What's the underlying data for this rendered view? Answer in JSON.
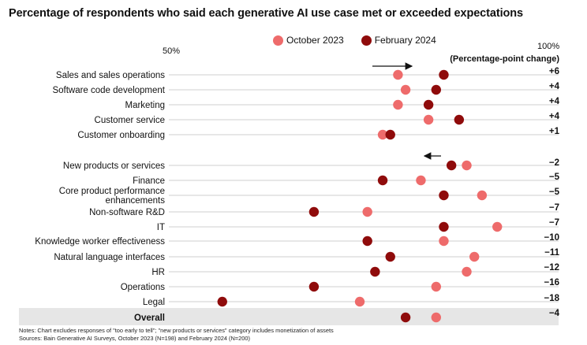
{
  "title": "Percentage of respondents who said each generative AI use case met or exceeded expectations",
  "legend": {
    "oct_label": "October 2023",
    "feb_label": "February 2024"
  },
  "axis": {
    "low_label": "50%",
    "high_label": "100%"
  },
  "change_header": "(Percentage-point change)",
  "notes": {
    "line1": "Notes: Chart excludes responses of \"too early to tell\"; \"new products or services\" category includes monetization of assets",
    "line2": "Sources: Bain Generative AI Surveys, October 2023 (N=198) and February 2024 (N=200)"
  },
  "colors": {
    "oct": "#ee6b6b",
    "feb": "#8f0b0b",
    "grid": "#bfbfbf",
    "overall_bg": "#e6e6e6"
  },
  "chart_data": {
    "type": "dot",
    "title": "Percentage of respondents who said each generative AI use case met or exceeded expectations",
    "xlim": [
      50,
      100
    ],
    "series": [
      "October 2023",
      "February 2024"
    ],
    "rows": [
      {
        "label": "Sales and sales operations",
        "oct": 80,
        "feb": 86,
        "change": "+6",
        "group": 1
      },
      {
        "label": "Software code development",
        "oct": 81,
        "feb": 85,
        "change": "+4",
        "group": 1
      },
      {
        "label": "Marketing",
        "oct": 80,
        "feb": 84,
        "change": "+4",
        "group": 1
      },
      {
        "label": "Customer service",
        "oct": 84,
        "feb": 88,
        "change": "+4",
        "group": 1
      },
      {
        "label": "Customer onboarding",
        "oct": 78,
        "feb": 79,
        "change": "+1",
        "group": 1
      },
      {
        "label": "New products or services",
        "oct": 89,
        "feb": 87,
        "change": "−2",
        "group": 2
      },
      {
        "label": "Finance",
        "oct": 83,
        "feb": 78,
        "change": "−5",
        "group": 2
      },
      {
        "label": "Core product performance enhancements",
        "label_lines": [
          "Core product performance",
          "enhancements"
        ],
        "oct": 91,
        "feb": 86,
        "change": "−5",
        "group": 2
      },
      {
        "label": "Non-software R&D",
        "oct": 76,
        "feb": 69,
        "change": "−7",
        "group": 2
      },
      {
        "label": "IT",
        "oct": 93,
        "feb": 86,
        "change": "−7",
        "group": 2
      },
      {
        "label": "Knowledge worker effectiveness",
        "oct": 86,
        "feb": 76,
        "change": "−10",
        "group": 2
      },
      {
        "label": "Natural language interfaces",
        "oct": 90,
        "feb": 79,
        "change": "−11",
        "group": 2
      },
      {
        "label": "HR",
        "oct": 89,
        "feb": 77,
        "change": "−12",
        "group": 2
      },
      {
        "label": "Operations",
        "oct": 85,
        "feb": 69,
        "change": "−16",
        "group": 2
      },
      {
        "label": "Legal",
        "oct": 75,
        "feb": 57,
        "change": "−18",
        "group": 2
      },
      {
        "label": "Overall",
        "oct": 85,
        "feb": 81,
        "change": "−4",
        "group": 3,
        "bold": true
      }
    ]
  }
}
